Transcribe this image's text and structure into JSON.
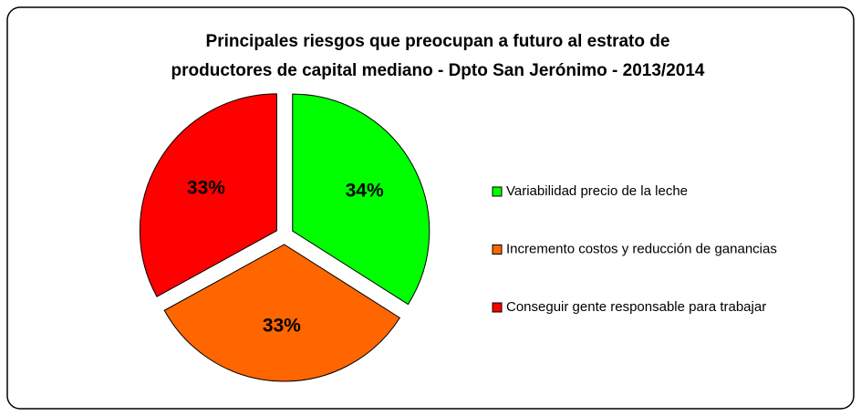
{
  "chart_data": {
    "type": "pie",
    "title": [
      "Principales riesgos que preocupan a futuro al estrato de",
      "productores de capital mediano - Dpto San Jerónimo - 2013/2014"
    ],
    "categories": [
      "Variabilidad precio de la leche",
      "Incremento costos y reducción de ganancias",
      "Conseguir gente responsable para trabajar"
    ],
    "values": [
      34,
      33,
      33
    ],
    "value_labels": [
      "34%",
      "33%",
      "33%"
    ],
    "colors": [
      "#00ff00",
      "#ff6600",
      "#ff0000"
    ],
    "legend": "right"
  }
}
